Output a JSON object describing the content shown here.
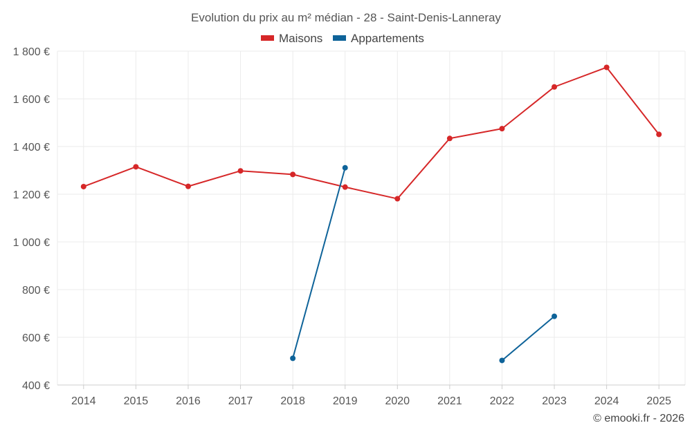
{
  "chart_data": {
    "type": "line",
    "title": "Evolution du prix au m² médian - 28 - Saint-Denis-Lanneray",
    "categories": [
      "2014",
      "2015",
      "2016",
      "2017",
      "2018",
      "2019",
      "2020",
      "2021",
      "2022",
      "2023",
      "2024",
      "2025"
    ],
    "series": [
      {
        "name": "Maisons",
        "color": "#d62728",
        "values": [
          1232,
          1315,
          1233,
          1298,
          1283,
          1230,
          1181,
          1434,
          1475,
          1650,
          1732,
          1451
        ]
      },
      {
        "name": "Appartements",
        "color": "#0e6399",
        "values": [
          null,
          null,
          null,
          null,
          512,
          1311,
          null,
          null,
          503,
          688,
          null,
          null
        ]
      }
    ],
    "ylim": [
      400,
      1800
    ],
    "yticks": [
      400,
      600,
      800,
      1000,
      1200,
      1400,
      1600,
      1800
    ],
    "ytick_labels": [
      "400 €",
      "600 €",
      "800 €",
      "1 000 €",
      "1 200 €",
      "1 400 €",
      "1 600 €",
      "1 800 €"
    ],
    "grid": true,
    "legend_position": "top-center",
    "credit": "© emooki.fr - 2026"
  }
}
